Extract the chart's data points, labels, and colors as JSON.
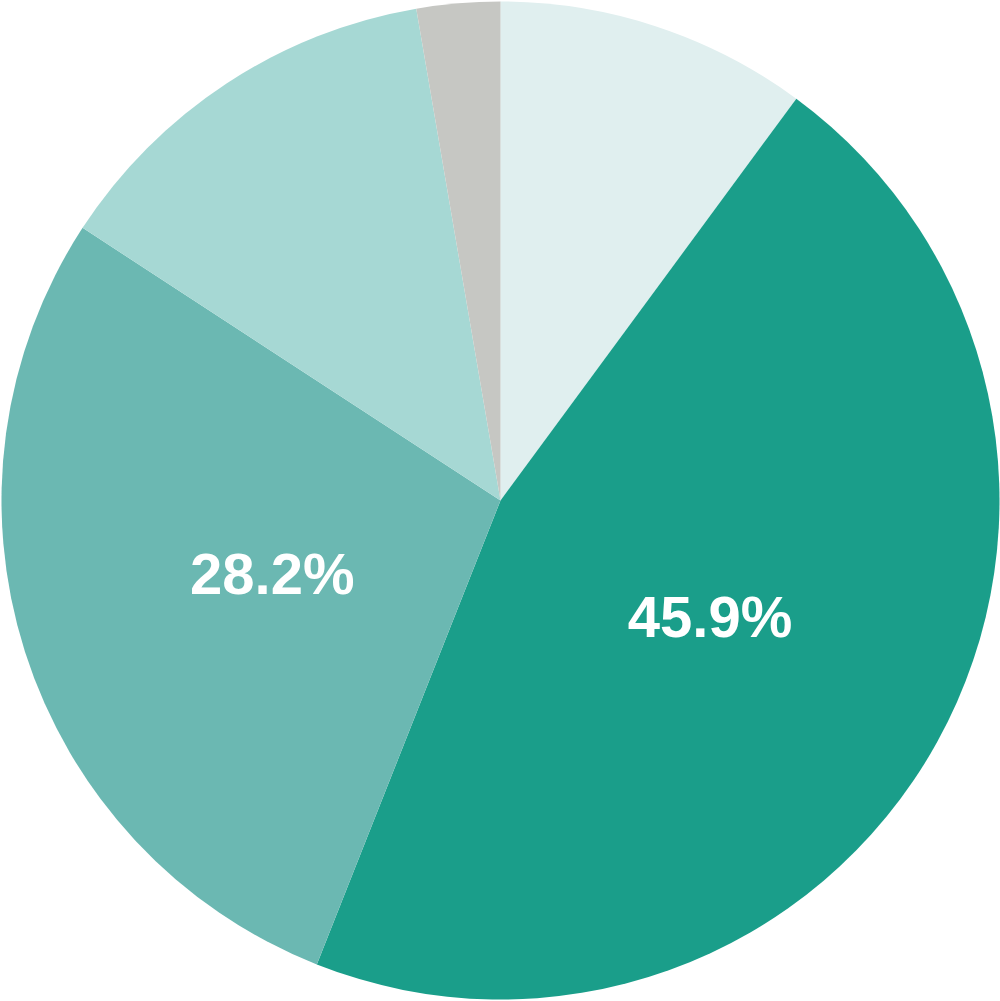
{
  "chart_data": {
    "type": "pie",
    "categories": [
      null,
      null,
      null,
      null,
      null
    ],
    "values": [
      10.1,
      45.9,
      28.2,
      13.1,
      2.7
    ],
    "colors": [
      "#e0efef",
      "#1a9e8a",
      "#6bb8b2",
      "#a6d8d4",
      "#c6c7c3"
    ],
    "value_labels": [
      null,
      "45.9%",
      "28.2%",
      null,
      null
    ]
  }
}
